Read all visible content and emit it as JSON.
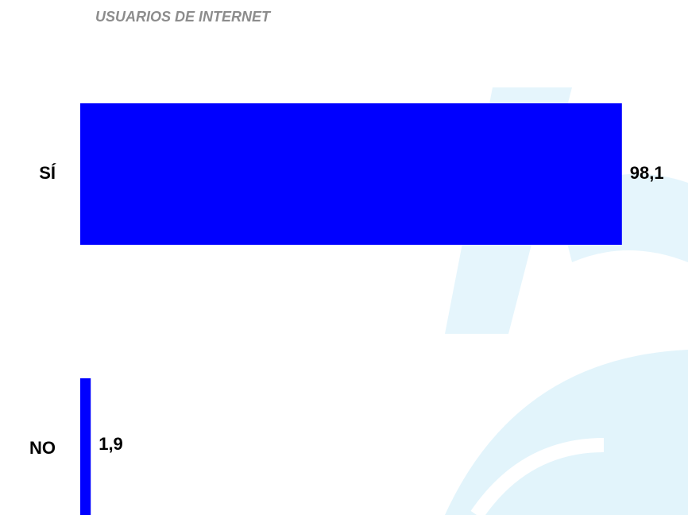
{
  "chart_data": {
    "type": "barh",
    "title": "USUARIOS DE INTERNET",
    "categories": [
      "SÍ",
      "NO"
    ],
    "values": [
      98.1,
      1.9
    ],
    "value_labels": [
      "98,1",
      "1,9"
    ],
    "color": "#0000ff",
    "xlim": [
      0,
      100
    ]
  }
}
